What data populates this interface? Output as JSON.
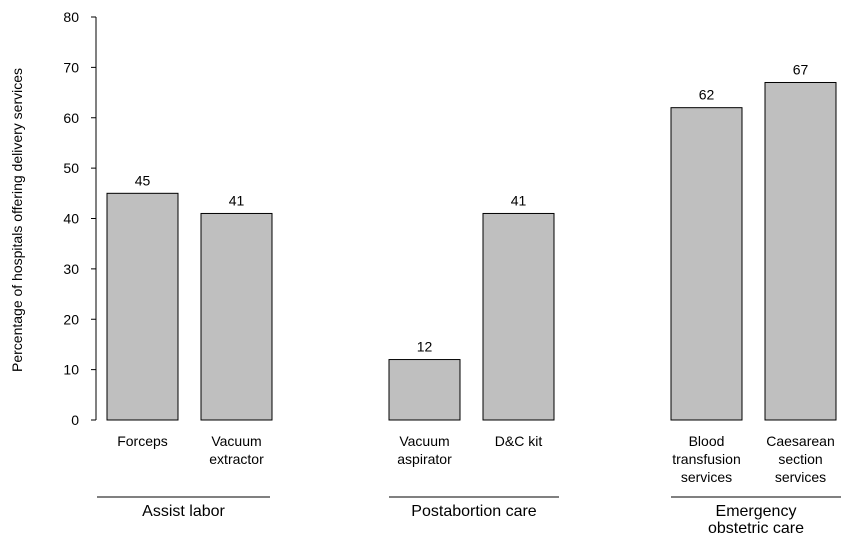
{
  "chart_data": {
    "type": "bar",
    "ylabel": "Percentage of hospitals offering delivery services",
    "ylim": [
      0,
      80
    ],
    "yticks": [
      0,
      10,
      20,
      30,
      40,
      50,
      60,
      70,
      80
    ],
    "grid": false,
    "categories": [
      {
        "lines": [
          "Forceps"
        ],
        "value": 45,
        "group": 0
      },
      {
        "lines": [
          "Vacuum",
          "extractor"
        ],
        "value": 41,
        "group": 0
      },
      {
        "lines": [
          "Vacuum",
          "aspirator"
        ],
        "value": 12,
        "group": 1
      },
      {
        "lines": [
          "D&C kit"
        ],
        "value": 41,
        "group": 1
      },
      {
        "lines": [
          "Blood",
          "transfusion",
          "services"
        ],
        "value": 62,
        "group": 2
      },
      {
        "lines": [
          "Caesarean",
          "section",
          "services"
        ],
        "value": 67,
        "group": 2
      }
    ],
    "groups": [
      {
        "lines": [
          "Assist labor"
        ]
      },
      {
        "lines": [
          "Postabortion care"
        ]
      },
      {
        "lines": [
          "Emergency",
          "obstetric care"
        ]
      }
    ],
    "bar_color": "#bfbfbf",
    "bar_edge_color": "#000000"
  }
}
